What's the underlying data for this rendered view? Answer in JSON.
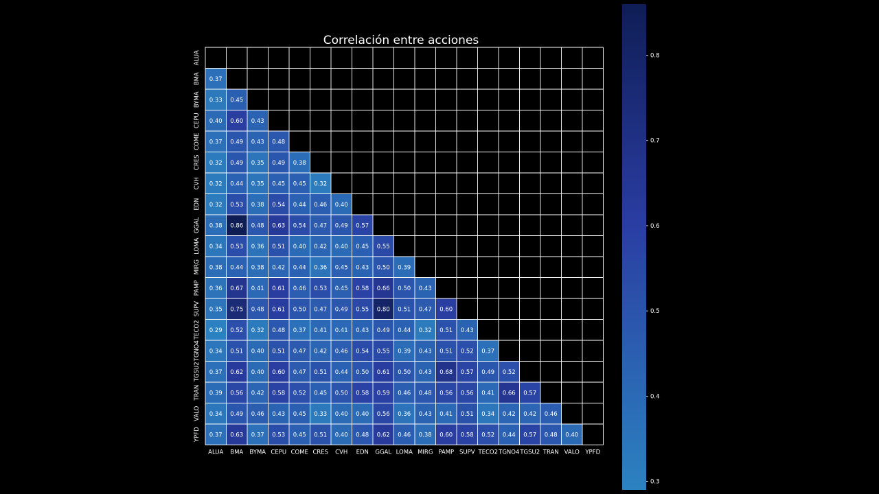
{
  "chart_data": {
    "type": "heatmap",
    "title": "Correlación entre acciones",
    "labels": [
      "ALUA",
      "BMA",
      "BYMA",
      "CEPU",
      "COME",
      "CRES",
      "CVH",
      "EDN",
      "GGAL",
      "LOMA",
      "MIRG",
      "PAMP",
      "SUPV",
      "TECO2",
      "TGNO4",
      "TGSU2",
      "TRAN",
      "VALO",
      "YPFD"
    ],
    "lower_triangle": [
      [],
      [
        0.37
      ],
      [
        0.33,
        0.45
      ],
      [
        0.4,
        0.6,
        0.43
      ],
      [
        0.37,
        0.49,
        0.43,
        0.48
      ],
      [
        0.32,
        0.49,
        0.35,
        0.49,
        0.38
      ],
      [
        0.32,
        0.44,
        0.35,
        0.45,
        0.45,
        0.32
      ],
      [
        0.32,
        0.53,
        0.38,
        0.54,
        0.44,
        0.46,
        0.4
      ],
      [
        0.38,
        0.86,
        0.48,
        0.63,
        0.54,
        0.47,
        0.49,
        0.57
      ],
      [
        0.34,
        0.53,
        0.36,
        0.51,
        0.4,
        0.42,
        0.4,
        0.45,
        0.55
      ],
      [
        0.38,
        0.44,
        0.38,
        0.42,
        0.44,
        0.36,
        0.45,
        0.43,
        0.5,
        0.39
      ],
      [
        0.36,
        0.67,
        0.41,
        0.61,
        0.46,
        0.53,
        0.45,
        0.58,
        0.66,
        0.5,
        0.43
      ],
      [
        0.35,
        0.75,
        0.48,
        0.61,
        0.5,
        0.47,
        0.49,
        0.55,
        0.8,
        0.51,
        0.47,
        0.6
      ],
      [
        0.29,
        0.52,
        0.32,
        0.48,
        0.37,
        0.41,
        0.41,
        0.43,
        0.49,
        0.44,
        0.32,
        0.51,
        0.43
      ],
      [
        0.34,
        0.51,
        0.4,
        0.51,
        0.47,
        0.42,
        0.46,
        0.54,
        0.55,
        0.39,
        0.43,
        0.51,
        0.52,
        0.37
      ],
      [
        0.37,
        0.62,
        0.4,
        0.6,
        0.47,
        0.51,
        0.44,
        0.5,
        0.61,
        0.5,
        0.43,
        0.68,
        0.57,
        0.49,
        0.52
      ],
      [
        0.39,
        0.56,
        0.42,
        0.58,
        0.52,
        0.45,
        0.5,
        0.58,
        0.59,
        0.46,
        0.48,
        0.56,
        0.56,
        0.41,
        0.66,
        0.57
      ],
      [
        0.34,
        0.49,
        0.46,
        0.43,
        0.45,
        0.33,
        0.4,
        0.4,
        0.56,
        0.36,
        0.43,
        0.41,
        0.51,
        0.34,
        0.42,
        0.42,
        0.46
      ],
      [
        0.37,
        0.63,
        0.37,
        0.53,
        0.45,
        0.51,
        0.4,
        0.48,
        0.62,
        0.46,
        0.38,
        0.6,
        0.58,
        0.52,
        0.44,
        0.57,
        0.48,
        0.4
      ]
    ],
    "masked": "upper-triangle-and-diagonal",
    "colorbar": {
      "range": [
        0.29,
        0.86
      ],
      "ticks": [
        "0.3",
        "0.4",
        "0.5",
        "0.6",
        "0.7",
        "0.8"
      ],
      "color_low": "#2c82c0",
      "color_mid": "#2a3da2",
      "color_high": "#0f1d55"
    },
    "grid_line_color": "#ffffff",
    "background": "#000000",
    "text_color": "#ffffff",
    "legend": "colorbar-right"
  }
}
